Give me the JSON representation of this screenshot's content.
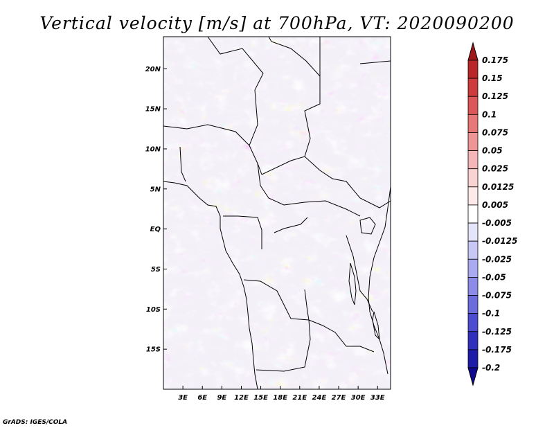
{
  "figure": {
    "title": "Vertical velocity [m/s] at 700hPa, VT: 2020090200",
    "credit": "GrADS: IGES/COLA"
  },
  "map": {
    "lon_range": [
      0,
      35
    ],
    "lat_range": [
      -20,
      24
    ],
    "lat_ticks": [
      {
        "lat": 20,
        "label": "20N"
      },
      {
        "lat": 15,
        "label": "15N"
      },
      {
        "lat": 10,
        "label": "10N"
      },
      {
        "lat": 5,
        "label": "5N"
      },
      {
        "lat": 0,
        "label": "EQ"
      },
      {
        "lat": -5,
        "label": "5S"
      },
      {
        "lat": -10,
        "label": "10S"
      },
      {
        "lat": -15,
        "label": "15S"
      }
    ],
    "lon_ticks": [
      {
        "lon": 3,
        "label": "3E"
      },
      {
        "lon": 6,
        "label": "6E"
      },
      {
        "lon": 9,
        "label": "9E"
      },
      {
        "lon": 12,
        "label": "12E"
      },
      {
        "lon": 15,
        "label": "15E"
      },
      {
        "lon": 18,
        "label": "18E"
      },
      {
        "lon": 21,
        "label": "21E"
      },
      {
        "lon": 24,
        "label": "24E"
      },
      {
        "lon": 27,
        "label": "27E"
      },
      {
        "lon": 30,
        "label": "30E"
      },
      {
        "lon": 33,
        "label": "33E"
      }
    ]
  },
  "colorbar": {
    "levels": [
      "0.175",
      "0.15",
      "0.125",
      "0.1",
      "0.075",
      "0.05",
      "0.025",
      "0.0125",
      "0.005",
      "-0.005",
      "-0.0125",
      "-0.025",
      "-0.05",
      "-0.075",
      "-0.1",
      "-0.125",
      "-0.175",
      "-0.2"
    ],
    "colors": [
      "#a01818",
      "#b82828",
      "#cc3c3c",
      "#dc5858",
      "#e67878",
      "#ee9696",
      "#f4b6b6",
      "#f9d2d2",
      "#fde9e9",
      "#ffffff",
      "#e4e4fb",
      "#c8c8f6",
      "#aaaaf0",
      "#8c8ce8",
      "#6c6cdc",
      "#4c4cd0",
      "#3030bc",
      "#1c1ca8",
      "#100890"
    ]
  }
}
